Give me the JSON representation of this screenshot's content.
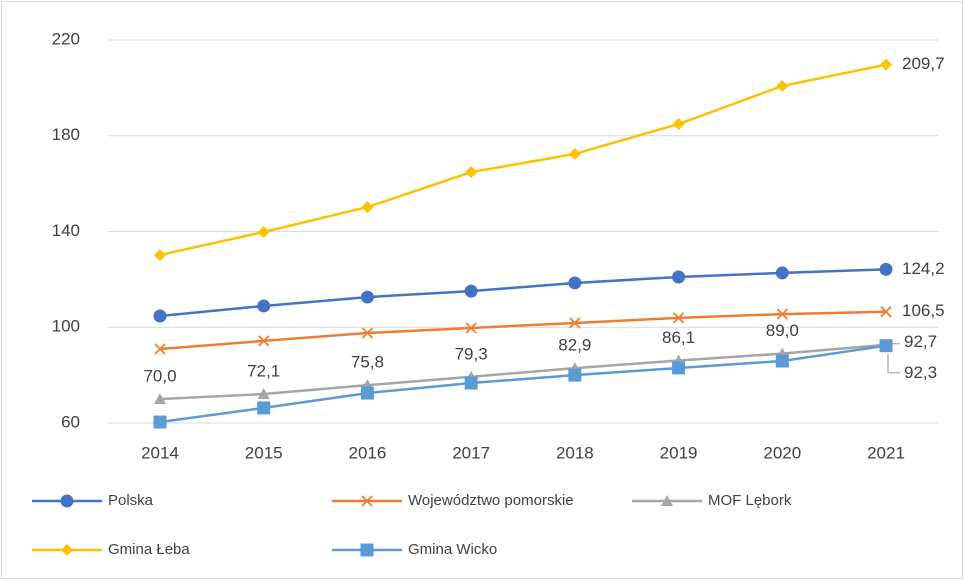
{
  "chart_data": {
    "type": "line",
    "categories": [
      "2014",
      "2015",
      "2016",
      "2017",
      "2018",
      "2019",
      "2020",
      "2021"
    ],
    "ylim": [
      60,
      220
    ],
    "yticks": [
      60,
      100,
      140,
      180,
      220
    ],
    "grid": true,
    "legend": "bottom",
    "series": [
      {
        "name": "Polska",
        "color": "#4472c4",
        "marker": "circle",
        "values": [
          104.7,
          108.9,
          112.6,
          115.1,
          118.5,
          121.0,
          122.7,
          124.2
        ],
        "value_labels": [
          null,
          null,
          null,
          null,
          null,
          null,
          null,
          "124,2"
        ]
      },
      {
        "name": "Województwo pomorskie",
        "color": "#ed7d31",
        "marker": "x",
        "values": [
          90.9,
          94.3,
          97.6,
          99.7,
          101.8,
          103.9,
          105.5,
          106.5
        ],
        "value_labels": [
          null,
          null,
          null,
          null,
          null,
          null,
          null,
          "106,5"
        ]
      },
      {
        "name": "MOF Lębork",
        "color": "#a5a5a5",
        "marker": "triangle",
        "values": [
          70.0,
          72.1,
          75.8,
          79.3,
          82.9,
          86.1,
          89.0,
          92.7
        ],
        "value_labels": [
          "70,0",
          "72,1",
          "75,8",
          "79,3",
          "82,9",
          "86,1",
          "89,0",
          "92,7"
        ]
      },
      {
        "name": "Gmina Łeba",
        "color": "#ffc000",
        "marker": "diamond",
        "values": [
          130.2,
          139.8,
          150.2,
          164.8,
          172.4,
          184.9,
          200.8,
          209.7
        ],
        "value_labels": [
          null,
          null,
          null,
          null,
          null,
          null,
          null,
          "209,7"
        ]
      },
      {
        "name": "Gmina Wicko",
        "color": "#5b9bd5",
        "marker": "square",
        "values": [
          60.4,
          66.3,
          72.5,
          76.7,
          80.0,
          83.0,
          85.9,
          92.3
        ],
        "value_labels": [
          null,
          null,
          null,
          null,
          null,
          null,
          null,
          "92,3"
        ]
      }
    ]
  }
}
